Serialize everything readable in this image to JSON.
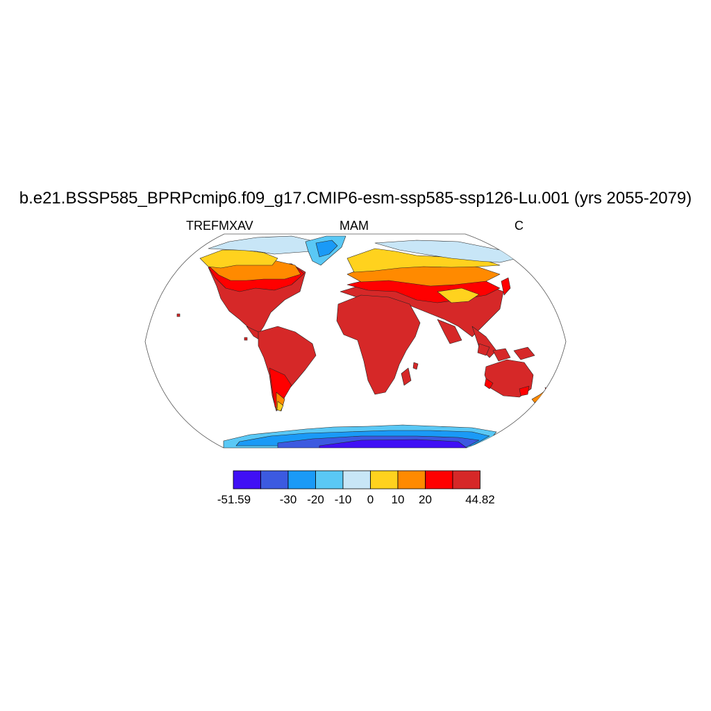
{
  "figure": {
    "title": "b.e21.BSSP585_BPRPcmip6.f09_g17.CMIP6-esm-ssp585-ssp126-Lu.001 (yrs 2055-2079)",
    "left_label": "TREFMXAV",
    "center_label": "MAM",
    "right_label": "C"
  },
  "chart_data": {
    "type": "heatmap",
    "projection": "Robinson",
    "variable": "TREFMXAV",
    "season": "MAM",
    "units": "C",
    "colorbar": {
      "colors": [
        "#4010f5",
        "#3c5ae0",
        "#1a9af7",
        "#5ac8f5",
        "#c8e6f7",
        "#ffd21e",
        "#ff8a00",
        "#ff0000",
        "#d62828"
      ],
      "tick_labels": [
        "-51.59",
        "-30",
        "-20",
        "-10",
        "0",
        "10",
        "20",
        "44.82"
      ],
      "levels": [
        -51.59,
        -40,
        -30,
        -20,
        -10,
        0,
        10,
        20,
        30,
        44.82
      ],
      "min": -51.59,
      "max": 44.82
    },
    "regions": [
      {
        "name": "North America",
        "value_range": "-10 to 44.82"
      },
      {
        "name": "Greenland",
        "value_range": "-30 to 0"
      },
      {
        "name": "South America",
        "value_range": "10 to 44.82"
      },
      {
        "name": "Europe",
        "value_range": "0 to 30"
      },
      {
        "name": "Africa",
        "value_range": "30 to 44.82"
      },
      {
        "name": "Asia",
        "value_range": "-10 to 44.82"
      },
      {
        "name": "Australia",
        "value_range": "20 to 44.82"
      },
      {
        "name": "Antarctica",
        "value_range": "-51.59 to -10"
      }
    ]
  }
}
